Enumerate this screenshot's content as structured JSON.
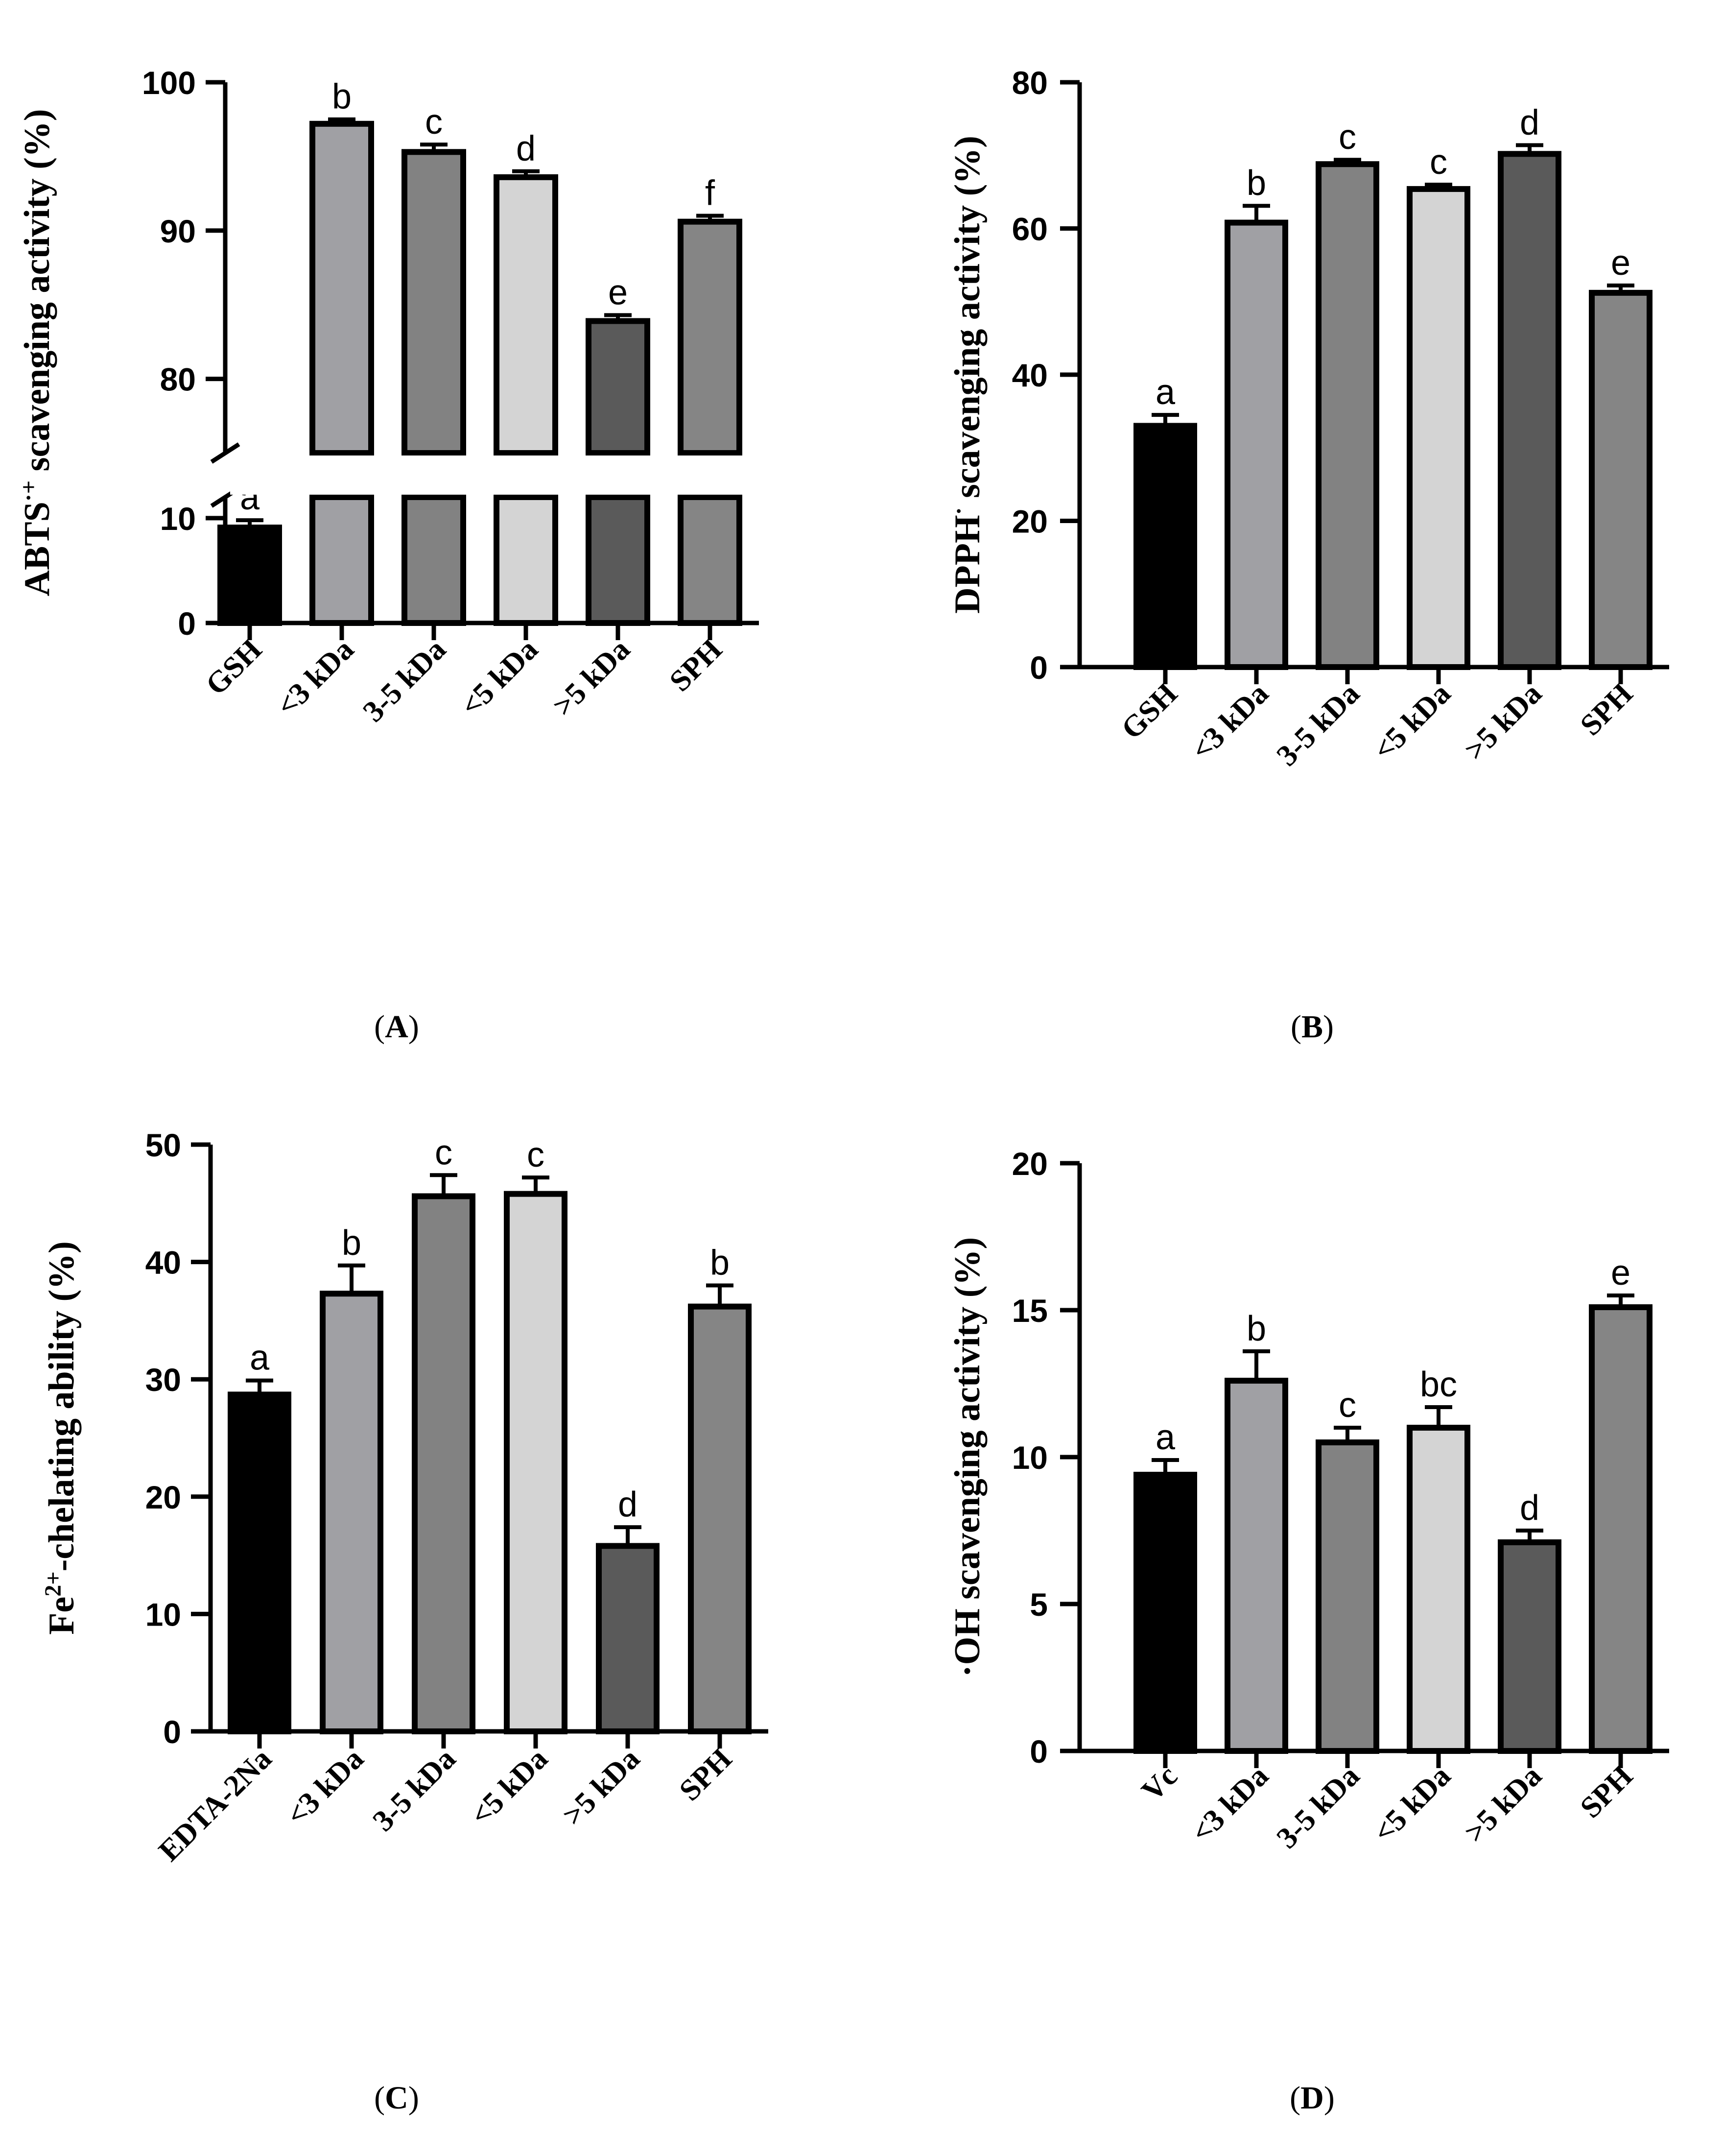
{
  "colors": {
    "axis": "#000000",
    "bar_outline": "#000000",
    "gsh": "#000000",
    "lt3": "#a0a0a4",
    "r35": "#828282",
    "lt5": "#d4d4d4",
    "gt5": "#5a5a5a",
    "sph": "#858585"
  },
  "panels": [
    {
      "label": "A",
      "caption_open": "(",
      "caption_close": ")"
    },
    {
      "label": "B",
      "caption_open": "(",
      "caption_close": ")"
    },
    {
      "label": "C",
      "caption_open": "(",
      "caption_close": ")"
    },
    {
      "label": "D",
      "caption_open": "(",
      "caption_close": ")"
    }
  ],
  "chart_data": [
    {
      "type": "bar",
      "panel": "A",
      "ylabel": "ABTS·+ scavenging activity (%)",
      "ylabel_main": "ABTS",
      "ylabel_sup": "·+",
      "ylabel_rest": " scavenging activity (%)",
      "broken_axis": true,
      "lower_range": [
        0,
        12
      ],
      "upper_range": [
        75,
        100
      ],
      "yticks_lower": [
        0,
        10
      ],
      "yticks_upper": [
        80,
        90,
        100
      ],
      "categories": [
        "GSH",
        "<3 kDa",
        "3-5 kDa",
        "<5 kDa",
        ">5 kDa",
        "SPH"
      ],
      "values": [
        9.1,
        97.2,
        95.3,
        93.6,
        83.9,
        90.6
      ],
      "errors": [
        0.7,
        0.3,
        0.5,
        0.4,
        0.4,
        0.4
      ],
      "letters": [
        "a",
        "b",
        "c",
        "d",
        "e",
        "f"
      ]
    },
    {
      "type": "bar",
      "panel": "B",
      "ylabel": "DPPH· scavenging activity (%)",
      "ylabel_main": "DPPH",
      "ylabel_sup": "·",
      "ylabel_rest": " scavenging activity (%)",
      "ylim": [
        0,
        80
      ],
      "yticks": [
        0,
        20,
        40,
        60,
        80
      ],
      "categories": [
        "GSH",
        "<3 kDa",
        "3-5 kDa",
        "<5 kDa",
        ">5 kDa",
        "SPH"
      ],
      "values": [
        33,
        60.8,
        68.8,
        65.4,
        70.2,
        51.2
      ],
      "errors": [
        1.5,
        2.3,
        0.6,
        0.6,
        1.2,
        1.0
      ],
      "letters": [
        "a",
        "b",
        "c",
        "c",
        "d",
        "e"
      ]
    },
    {
      "type": "bar",
      "panel": "C",
      "ylabel": "Fe2+-chelating ability (%)",
      "ylabel_main": "Fe",
      "ylabel_sup": "2+",
      "ylabel_rest": "-chelating ability (%)",
      "ylim": [
        0,
        50
      ],
      "yticks": [
        0,
        10,
        20,
        30,
        40,
        50
      ],
      "categories": [
        "EDTA-2Na",
        "<3 kDa",
        "3-5 kDa",
        "<5 kDa",
        ">5 kDa",
        "SPH"
      ],
      "values": [
        28.7,
        37.3,
        45.6,
        45.8,
        15.8,
        36.2
      ],
      "errors": [
        1.2,
        2.4,
        1.8,
        1.4,
        1.6,
        1.8
      ],
      "letters": [
        "a",
        "b",
        "c",
        "c",
        "d",
        "b"
      ]
    },
    {
      "type": "bar",
      "panel": "D",
      "ylabel": "·OH scavenging activity (%)",
      "ylabel_main": "·OH scavenging activity (%)",
      "ylabel_sup": "",
      "ylabel_rest": "",
      "ylim": [
        0,
        20
      ],
      "yticks": [
        0,
        5,
        10,
        15,
        20
      ],
      "categories": [
        "Vc",
        "<3 kDa",
        "3-5 kDa",
        "<5 kDa",
        ">5 kDa",
        "SPH"
      ],
      "values": [
        9.4,
        12.6,
        10.5,
        11.0,
        7.1,
        15.1
      ],
      "errors": [
        0.5,
        1.0,
        0.5,
        0.7,
        0.4,
        0.4
      ],
      "letters": [
        "a",
        "b",
        "c",
        "bc",
        "d",
        "e"
      ]
    }
  ]
}
